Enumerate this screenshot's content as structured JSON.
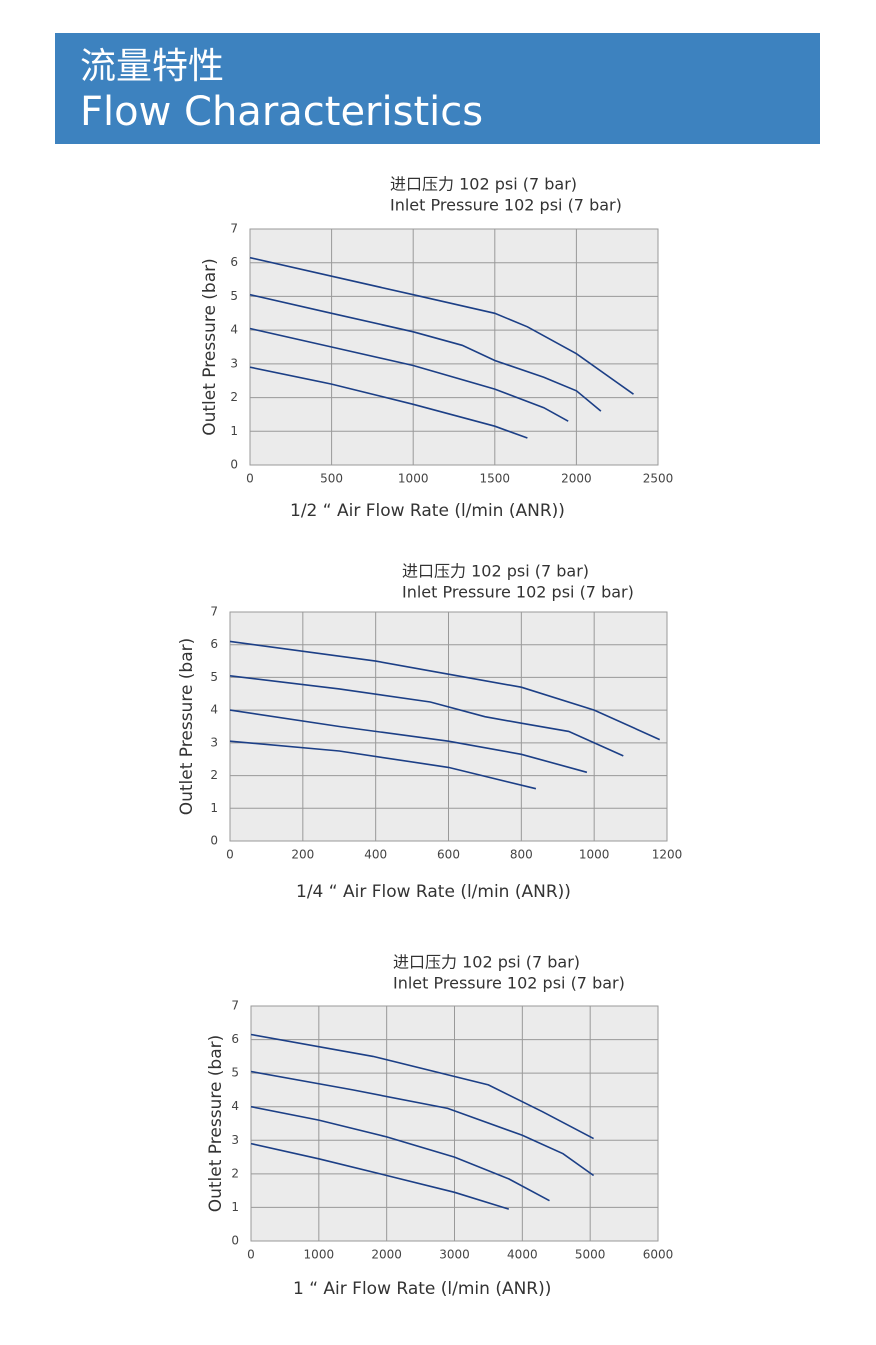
{
  "header": {
    "title_cn": "流量特性",
    "title_en": "Flow Characteristics"
  },
  "chart_data": [
    {
      "type": "line",
      "title": "进口压力 102 psi (7 bar)",
      "subtitle": "Inlet Pressure  102 psi (7 bar)",
      "x_label": "1/2  “ Air Flow Rate (l/min (ANR))",
      "y_label": "Outlet Pressure (bar)",
      "xlim": [
        0,
        2500
      ],
      "xticks": [
        0,
        500,
        1000,
        1500,
        2000,
        2500
      ],
      "ylim": [
        0,
        7
      ],
      "yticks": [
        0,
        1,
        2,
        3,
        4,
        5,
        6,
        7
      ],
      "grid": true,
      "series": [
        {
          "color": "#1c3f86",
          "x": [
            0,
            500,
            1000,
            1500,
            1700,
            2000,
            2350
          ],
          "values": [
            6.15,
            5.6,
            5.05,
            4.5,
            4.1,
            3.3,
            2.1
          ]
        },
        {
          "color": "#1c3f86",
          "x": [
            0,
            500,
            1000,
            1300,
            1500,
            1800,
            2000,
            2150
          ],
          "values": [
            5.05,
            4.5,
            3.95,
            3.55,
            3.1,
            2.6,
            2.2,
            1.6
          ]
        },
        {
          "color": "#1c3f86",
          "x": [
            0,
            500,
            1000,
            1500,
            1800,
            1950
          ],
          "values": [
            4.05,
            3.5,
            2.95,
            2.25,
            1.7,
            1.3
          ]
        },
        {
          "color": "#1c3f86",
          "x": [
            0,
            500,
            1000,
            1500,
            1700
          ],
          "values": [
            2.9,
            2.4,
            1.8,
            1.15,
            0.8
          ]
        }
      ]
    },
    {
      "type": "line",
      "title": "进口压力 102 psi (7 bar)",
      "subtitle": "Inlet Pressure  102 psi (7 bar)",
      "x_label": "1/4  “ Air Flow Rate (l/min (ANR))",
      "y_label": "Outlet Pressure (bar)",
      "xlim": [
        0,
        1200
      ],
      "xticks": [
        0,
        200,
        400,
        600,
        800,
        1000,
        1200
      ],
      "ylim": [
        0,
        7
      ],
      "yticks": [
        0,
        1,
        2,
        3,
        4,
        5,
        6,
        7
      ],
      "grid": true,
      "series": [
        {
          "color": "#1c3f86",
          "x": [
            0,
            400,
            600,
            800,
            1000,
            1180
          ],
          "values": [
            6.1,
            5.5,
            5.1,
            4.7,
            4.0,
            3.1
          ]
        },
        {
          "color": "#1c3f86",
          "x": [
            0,
            300,
            550,
            700,
            800,
            930,
            1080
          ],
          "values": [
            5.05,
            4.65,
            4.25,
            3.8,
            3.6,
            3.35,
            2.6
          ]
        },
        {
          "color": "#1c3f86",
          "x": [
            0,
            300,
            600,
            800,
            980
          ],
          "values": [
            4.0,
            3.5,
            3.05,
            2.65,
            2.1
          ]
        },
        {
          "color": "#1c3f86",
          "x": [
            0,
            300,
            600,
            840
          ],
          "values": [
            3.05,
            2.75,
            2.25,
            1.6
          ]
        }
      ]
    },
    {
      "type": "line",
      "title": "进口压力 102 psi (7 bar)",
      "subtitle": "Inlet Pressure  102 psi (7 bar)",
      "x_label": "1  “ Air Flow Rate (l/min (ANR))",
      "y_label": "Outlet Pressure (bar)",
      "xlim": [
        0,
        6000
      ],
      "xticks": [
        0,
        1000,
        2000,
        3000,
        4000,
        5000,
        6000
      ],
      "ylim": [
        0,
        7
      ],
      "yticks": [
        0,
        1,
        2,
        3,
        4,
        5,
        6,
        7
      ],
      "grid": true,
      "series": [
        {
          "color": "#1c3f86",
          "x": [
            0,
            1800,
            3500,
            4300,
            5050
          ],
          "values": [
            6.15,
            5.5,
            4.65,
            3.85,
            3.05
          ]
        },
        {
          "color": "#1c3f86",
          "x": [
            0,
            1500,
            2900,
            4000,
            4600,
            5050
          ],
          "values": [
            5.05,
            4.5,
            3.95,
            3.15,
            2.6,
            1.95
          ]
        },
        {
          "color": "#1c3f86",
          "x": [
            0,
            1000,
            2000,
            3000,
            3800,
            4400
          ],
          "values": [
            4.0,
            3.6,
            3.1,
            2.5,
            1.85,
            1.2
          ]
        },
        {
          "color": "#1c3f86",
          "x": [
            0,
            1000,
            2000,
            3000,
            3800
          ],
          "values": [
            2.9,
            2.45,
            1.95,
            1.45,
            0.95
          ]
        }
      ]
    }
  ]
}
